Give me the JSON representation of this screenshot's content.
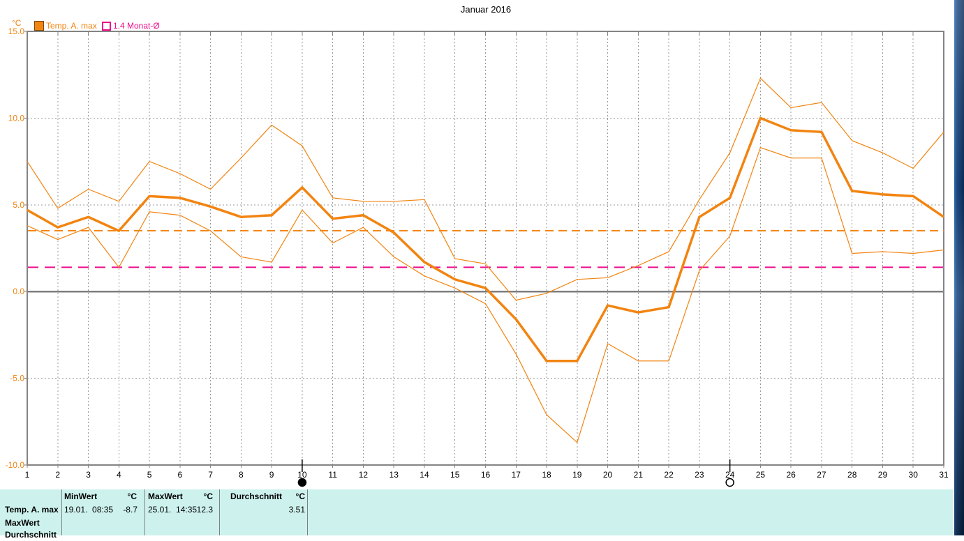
{
  "title": "Januar 2016",
  "y_axis": {
    "unit": "°C"
  },
  "legend": {
    "series": [
      {
        "label": "Temp. A. max",
        "swatch": "filled-orange-square"
      },
      {
        "label": "1.4 Monat-Ø",
        "swatch": "open-magenta-square"
      }
    ]
  },
  "colors": {
    "accent_orange": "#f28411",
    "accent_magenta": "#ee0d8a",
    "grid_gray": "#9a9a9a",
    "axis_border_gray": "#848484",
    "zero_line_gray": "#7d7d7d",
    "table_background": "#cdf2ee",
    "desktop_blue": "#16406f"
  },
  "chart_data": {
    "type": "line",
    "title": "Januar 2016",
    "x": [
      1,
      2,
      3,
      4,
      5,
      6,
      7,
      8,
      9,
      10,
      11,
      12,
      13,
      14,
      15,
      16,
      17,
      18,
      19,
      20,
      21,
      22,
      23,
      24,
      25,
      26,
      27,
      28,
      29,
      30,
      31
    ],
    "ylim": [
      -10,
      15
    ],
    "yticks": [
      {
        "v": 15,
        "label": "15.0"
      },
      {
        "v": 10,
        "label": "10.0"
      },
      {
        "v": 5,
        "label": "5.0"
      },
      {
        "v": 0,
        "label": "0.0"
      },
      {
        "v": -5,
        "label": "-5.0"
      },
      {
        "v": -10,
        "label": "-10.0"
      }
    ],
    "grid": {
      "y_dashed": [
        10,
        5,
        -5
      ],
      "y_solid": [
        0
      ],
      "x_dashed_every_day": true
    },
    "series": [
      {
        "name": "daily-max-envelope",
        "color": "#f28411",
        "width": 1.2,
        "values": [
          7.5,
          4.8,
          5.9,
          5.2,
          7.5,
          6.8,
          5.9,
          7.7,
          9.6,
          8.4,
          5.4,
          5.2,
          5.2,
          5.3,
          1.9,
          1.6,
          -0.5,
          -0.1,
          0.7,
          0.8,
          1.5,
          2.3,
          5.3,
          8.0,
          12.3,
          10.6,
          10.9,
          8.7,
          8.0,
          7.1,
          9.2
        ]
      },
      {
        "name": "daily-min-envelope",
        "color": "#f28411",
        "width": 1.2,
        "values": [
          3.8,
          3.0,
          3.7,
          1.4,
          4.6,
          4.4,
          3.5,
          2.0,
          1.7,
          4.7,
          2.8,
          3.7,
          2.0,
          0.9,
          0.2,
          -0.7,
          -3.6,
          -7.1,
          -8.7,
          -3.0,
          -4.0,
          -4.0,
          1.2,
          3.2,
          8.3,
          7.7,
          7.7,
          2.2,
          2.3,
          2.2,
          2.4
        ]
      },
      {
        "name": "temp-a-max-mean",
        "color": "#f28411",
        "width": 3.5,
        "values": [
          4.7,
          3.7,
          4.3,
          3.5,
          5.5,
          5.4,
          4.9,
          4.3,
          4.4,
          6.0,
          4.2,
          4.4,
          3.4,
          1.7,
          0.7,
          0.2,
          -1.6,
          -4.0,
          -4.0,
          -0.8,
          -1.2,
          -0.9,
          4.3,
          5.4,
          10.0,
          9.3,
          9.2,
          5.8,
          5.6,
          5.5,
          4.3
        ]
      }
    ],
    "reference_lines": [
      {
        "name": "month-mean-3-51",
        "value": 3.51,
        "color": "#f28411",
        "dash": "12 7"
      },
      {
        "name": "monat-avg-1-4",
        "value": 1.4,
        "color": "#ee0d8a",
        "dash": "15 9"
      }
    ],
    "moon_markers": [
      {
        "day": 10,
        "phase": "new"
      },
      {
        "day": 24,
        "phase": "full"
      }
    ]
  },
  "table": {
    "rows": [
      "Temp. A. max",
      "MaxWert",
      "Durchschnitt"
    ],
    "min": {
      "header": "MinWert",
      "unit": "°C",
      "date": "19.01.  08:35",
      "value": "-8.7"
    },
    "max": {
      "header": "MaxWert",
      "unit": "°C",
      "date": "25.01.  14:35",
      "value": "12.3"
    },
    "avg": {
      "header": "Durchschnitt",
      "unit": "°C",
      "value": "3.51"
    }
  }
}
